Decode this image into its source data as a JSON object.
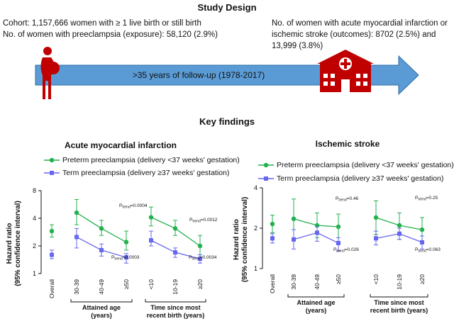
{
  "study_design": {
    "title": "Study Design",
    "cohort_line1": "Cohort: 1,157,666 women with ≥ 1 live birth or still birth",
    "cohort_line2": "No. of women with preeclampsia (exposure): 58,120 (2.9%)",
    "outcomes_text": "No. of women with acute myocardial infarction or ischemic stroke (outcomes): 8702 (2.5%) and 13,999 (3.8%)",
    "timeline_label": ">35 years of follow-up (1978-2017)",
    "colors": {
      "arrow_fill": "#5b9bd5",
      "arrow_stroke": "#2e6ca4",
      "woman_icon": "#c00000",
      "hospital_icon": "#c00000"
    },
    "icons": [
      "pregnant-woman-icon",
      "hospital-icon"
    ]
  },
  "key_findings_title": "Key findings",
  "legend": {
    "preterm": "Preterm preeclampsia (delivery <37 weeks' gestation)",
    "term": "Term preeclampsia (delivery ≥37 weeks' gestation)"
  },
  "colors": {
    "preterm": "#22b14c",
    "term": "#6666ee"
  },
  "chart_data": [
    {
      "type": "scatter",
      "title": "Acute myocardial infarction",
      "ylabel_line1": "Hazard ratio",
      "ylabel_line2": "(95% confidence interval)",
      "y_scale": "log2",
      "ylim": [
        1,
        8
      ],
      "yticks": [
        "1",
        "2",
        "4",
        "8"
      ],
      "x_labels": [
        "Overall",
        "30-39",
        "40-49",
        "≥50",
        "<10",
        "10-19",
        "≥20"
      ],
      "group_labels": [
        {
          "text1": "Attained age",
          "text2": "(years)"
        },
        {
          "text1": "Time since most",
          "text2": "recent birth (years)"
        }
      ],
      "series": [
        {
          "name": "Preterm preeclampsia (delivery <37 weeks' gestation)",
          "values": [
            2.9,
            4.6,
            3.1,
            2.2,
            4.1,
            3.1,
            2.0
          ],
          "lower": [
            2.5,
            3.4,
            2.6,
            1.8,
            3.3,
            2.6,
            1.6
          ],
          "upper": [
            3.4,
            6.4,
            3.8,
            2.9,
            5.3,
            3.8,
            2.6
          ]
        },
        {
          "name": "Term preeclampsia (delivery ≥37 weeks' gestation)",
          "values": [
            1.6,
            2.5,
            1.8,
            1.5,
            2.3,
            1.7,
            1.45
          ],
          "lower": [
            1.45,
            1.9,
            1.55,
            1.3,
            2.0,
            1.5,
            1.3
          ],
          "upper": [
            1.8,
            3.1,
            2.1,
            1.65,
            2.9,
            1.9,
            1.6
          ]
        }
      ],
      "p_trend_preterm": [
        "P",
        "trend",
        "=0.0004",
        "=0.0012"
      ],
      "p_trend_term": [
        "P",
        "trend",
        "=0.0003",
        "=0.0034"
      ]
    },
    {
      "type": "scatter",
      "title": "Ischemic stroke",
      "ylabel_line1": "Hazard ratio",
      "ylabel_line2": "(95% confidence interval)",
      "y_scale": "log2",
      "ylim": [
        1,
        4
      ],
      "yticks": [
        "1",
        "2",
        "4"
      ],
      "x_labels": [
        "Overall",
        "30-39",
        "40-49",
        "≥50",
        "<10",
        "10-19",
        "≥20"
      ],
      "group_labels": [
        {
          "text1": "Attained age",
          "text2": "(years)"
        },
        {
          "text1": "Time since most",
          "text2": "recent birth (years)"
        }
      ],
      "series": [
        {
          "name": "Preterm preeclampsia (delivery <37 weeks' gestation)",
          "values": [
            2.15,
            2.35,
            2.1,
            2.05,
            2.4,
            2.1,
            1.95
          ],
          "lower": [
            1.85,
            1.6,
            1.7,
            1.55,
            1.8,
            1.65,
            1.55
          ],
          "upper": [
            2.5,
            3.3,
            2.6,
            2.55,
            3.2,
            2.6,
            2.4
          ]
        },
        {
          "name": "Term preeclampsia (delivery ≥37 weeks' gestation)",
          "values": [
            1.68,
            1.65,
            1.85,
            1.55,
            1.68,
            1.82,
            1.57
          ],
          "lower": [
            1.55,
            1.4,
            1.6,
            1.35,
            1.5,
            1.65,
            1.4
          ],
          "upper": [
            1.82,
            1.95,
            2.05,
            1.7,
            1.9,
            2.0,
            1.75
          ]
        }
      ],
      "p_trend_preterm": [
        "P",
        "trend",
        "=0.46",
        "=0.25"
      ],
      "p_trend_term": [
        "P",
        "trend",
        "=0.026",
        "=0.063"
      ]
    }
  ]
}
